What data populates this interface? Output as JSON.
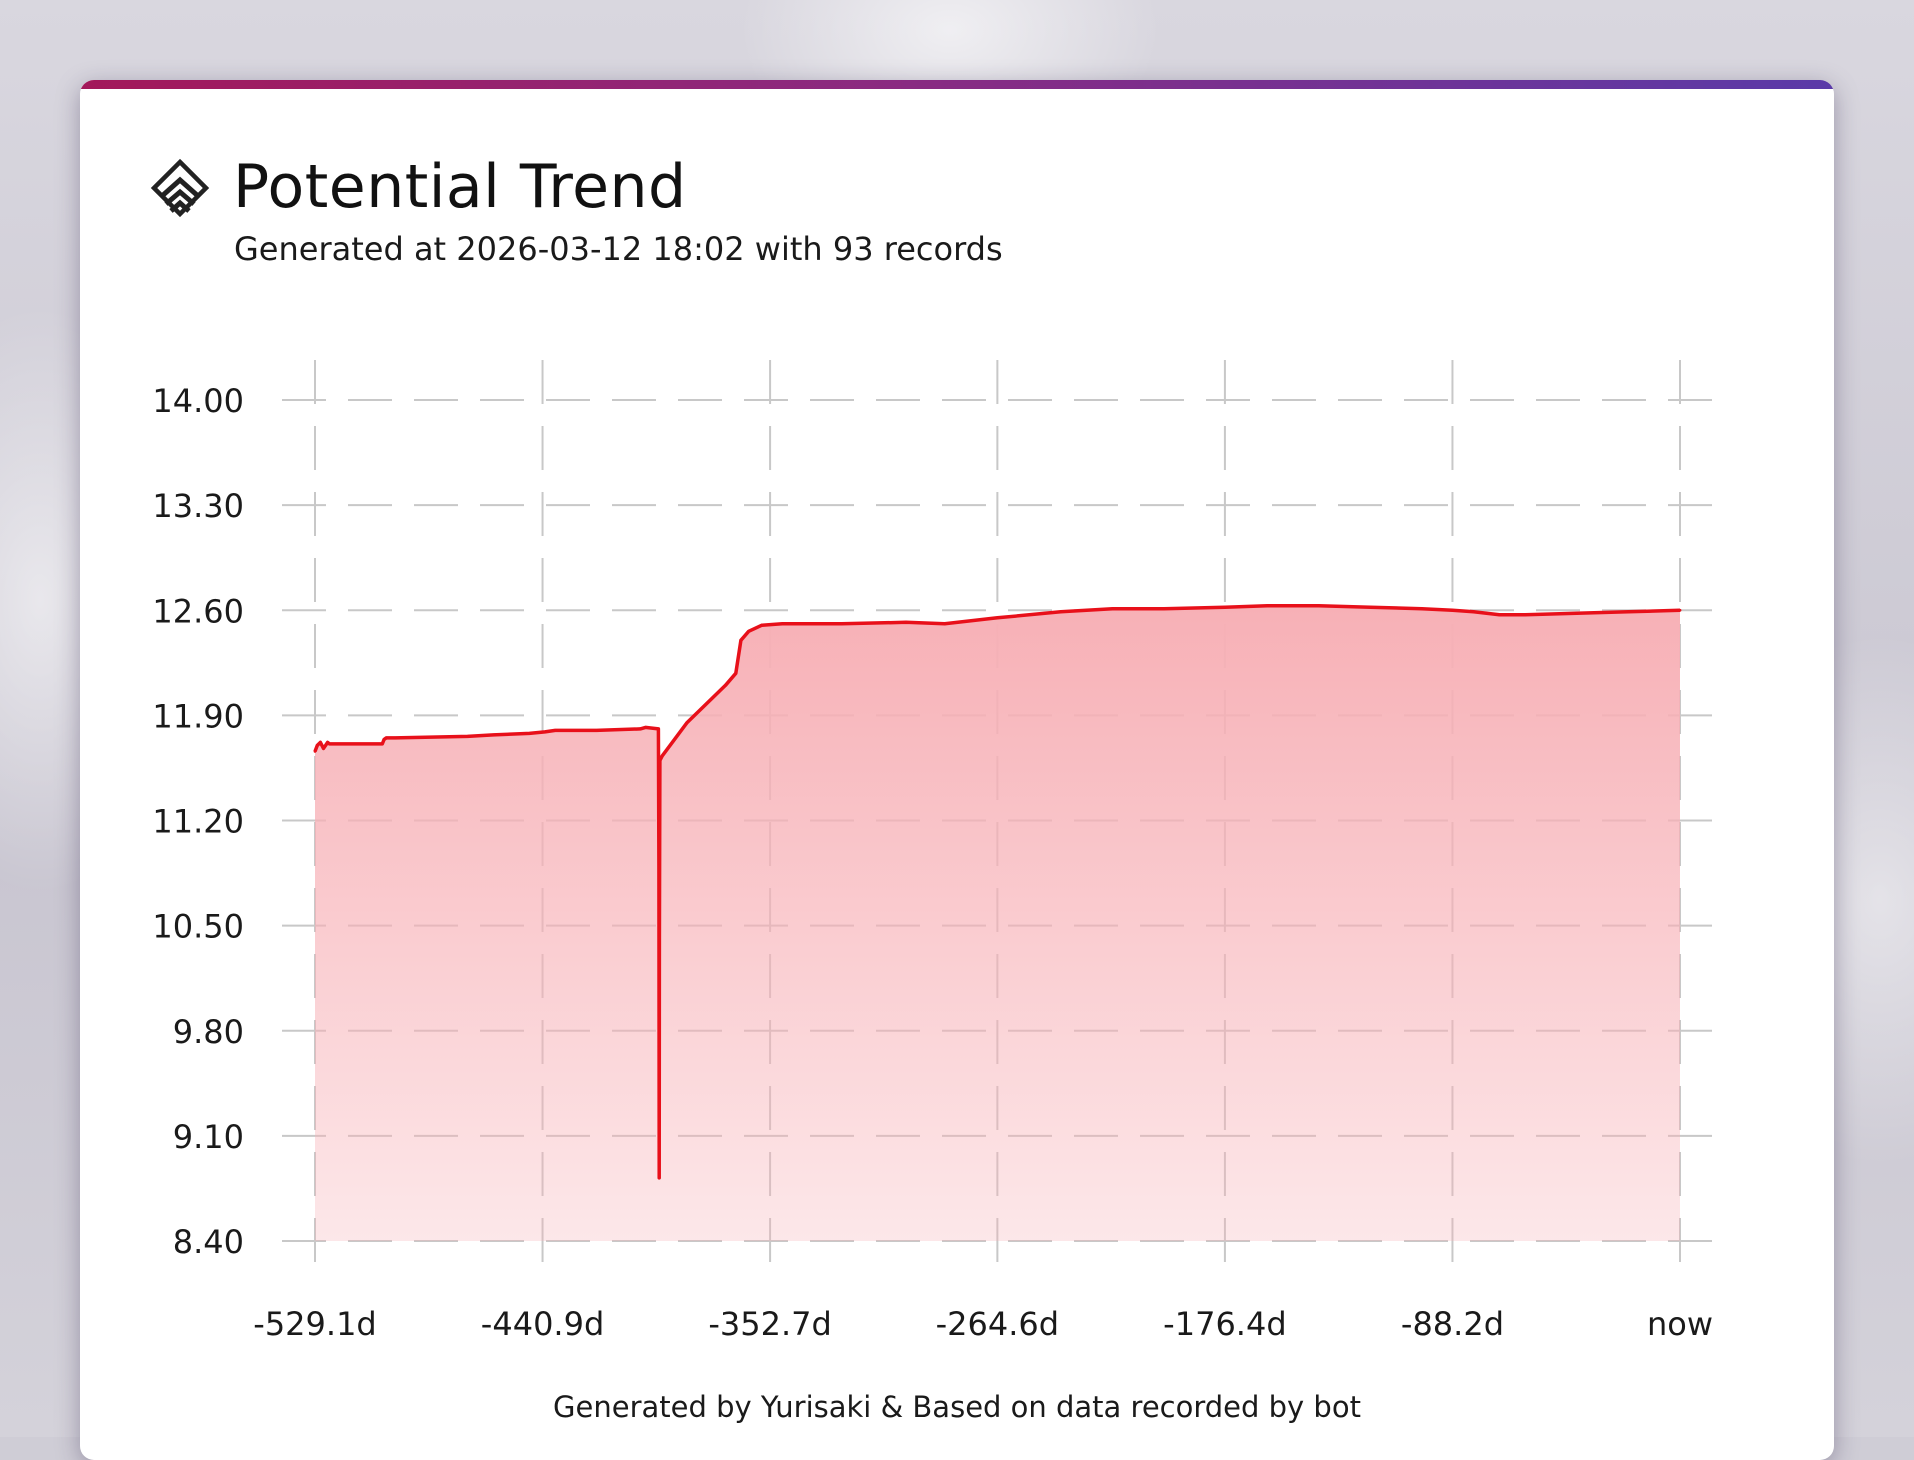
{
  "header": {
    "title": "Potential Trend",
    "subtitle": "Generated at 2026-03-12 18:02 with 93 records",
    "icon": "potential-chevron-icon"
  },
  "footer": {
    "text": "Generated by Yurisaki & Based on data recorded by bot"
  },
  "colors": {
    "accent_start": "#a3185a",
    "accent_end": "#5a3aa8",
    "line": "#e8101a",
    "fill": "#f7b0b6",
    "grid": "#c8c8c8"
  },
  "chart_data": {
    "type": "area",
    "title": "",
    "xlabel": "",
    "ylabel": "",
    "ylim": [
      8.4,
      14.0
    ],
    "xlim": [
      -529.1,
      0
    ],
    "yticks": [
      14.0,
      13.3,
      12.6,
      11.9,
      11.2,
      10.5,
      9.8,
      9.1,
      8.4
    ],
    "ytick_labels": [
      "14.00",
      "13.30",
      "12.60",
      "11.90",
      "11.20",
      "10.50",
      "9.80",
      "9.10",
      "8.40"
    ],
    "xticks": [
      -529.1,
      -440.9,
      -352.7,
      -264.6,
      -176.4,
      -88.2,
      0
    ],
    "xtick_labels": [
      "-529.1d",
      "-440.9d",
      "-352.7d",
      "-264.6d",
      "-176.4d",
      "-88.2d",
      "now"
    ],
    "grid": true,
    "legend": "none",
    "series": [
      {
        "x": [
          -529.1,
          -528.2,
          -527.0,
          -525.8,
          -525.0,
          -524.2,
          -523.5,
          -522.6,
          -520.0,
          -503.0,
          -502.3,
          -501.5,
          -498.0,
          -470.0,
          -460.0,
          -446.0,
          -440.0,
          -436.0,
          -430.0,
          -420.0,
          -403.0,
          -401.0,
          -396.0,
          -395.8,
          -395.7,
          -395.6,
          -395.4,
          -394.5,
          -385.0,
          -370.0,
          -366.0,
          -364.0,
          -361.0,
          -356.0,
          -348.0,
          -325.0,
          -300.0,
          -285.0,
          -264.6,
          -240.0,
          -220.0,
          -200.0,
          -176.4,
          -160.0,
          -140.0,
          -120.0,
          -100.0,
          -88.2,
          -80.0,
          -70.0,
          -60.0,
          -40.0,
          -20.0,
          0
        ],
        "y": [
          11.66,
          11.7,
          11.72,
          11.68,
          11.7,
          11.72,
          11.71,
          11.71,
          11.71,
          11.71,
          11.74,
          11.75,
          11.75,
          11.76,
          11.77,
          11.78,
          11.79,
          11.8,
          11.8,
          11.8,
          11.81,
          11.82,
          11.81,
          10.9,
          8.82,
          10.4,
          11.6,
          11.63,
          11.85,
          12.1,
          12.18,
          12.4,
          12.46,
          12.5,
          12.51,
          12.51,
          12.52,
          12.51,
          12.55,
          12.59,
          12.61,
          12.61,
          12.62,
          12.63,
          12.63,
          12.62,
          12.61,
          12.6,
          12.59,
          12.57,
          12.57,
          12.58,
          12.59,
          12.6
        ]
      }
    ]
  }
}
